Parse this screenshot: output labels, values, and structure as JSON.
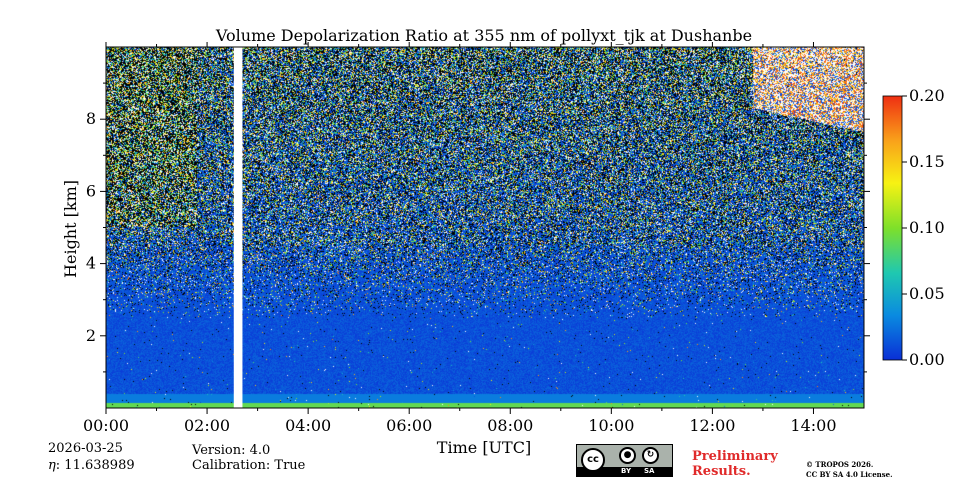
{
  "chart_data": {
    "type": "heatmap",
    "title": "Volume Depolarization Ratio at 355 nm of pollyxt_tjk at Dushanbe",
    "xlabel": "Time [UTC]",
    "ylabel": "Height [km]",
    "xlim": [
      0,
      15
    ],
    "ylim": [
      0,
      10
    ],
    "x_ticks": [
      0,
      2,
      4,
      6,
      8,
      10,
      12,
      14
    ],
    "x_ticklabels": [
      "00:00",
      "02:00",
      "04:00",
      "06:00",
      "08:00",
      "10:00",
      "12:00",
      "14:00"
    ],
    "y_ticks": [
      2,
      4,
      6,
      8
    ],
    "y_ticklabels": [
      "2",
      "4",
      "6",
      "8"
    ],
    "colorbar": {
      "range": [
        0.0,
        0.2
      ],
      "ticks": [
        0.0,
        0.05,
        0.1,
        0.15,
        0.2
      ],
      "ticklabels": [
        "0.00",
        "0.05",
        "0.10",
        "0.15",
        "0.20"
      ],
      "colormap": [
        "#0a2fd6",
        "#0a8be0",
        "#1fc8b0",
        "#7ee02a",
        "#f7f213",
        "#f9a21a",
        "#ef2f12"
      ]
    },
    "no_data_intervals_hours": [
      [
        2.53,
        2.7
      ]
    ],
    "features": {
      "low_layer_top_km": 2.5,
      "noisy_above_km": 4.5,
      "high_value_region": {
        "time_h": [
          12.8,
          15.0
        ],
        "height_km": [
          8.3,
          10.0
        ]
      }
    }
  },
  "info": {
    "date": "2026-03-25",
    "eta": ": 11.638989",
    "eta_symbol": "η",
    "version": "Version: 4.0",
    "calibration": "Calibration: True"
  },
  "license": {
    "cc": "cc",
    "by": "BY",
    "sa": "SA",
    "preliminary_line1": "Preliminary",
    "preliminary_line2": "Results.",
    "copyright_line1": "© TROPOS 2026.",
    "copyright_line2": "CC BY SA 4.0 License."
  }
}
